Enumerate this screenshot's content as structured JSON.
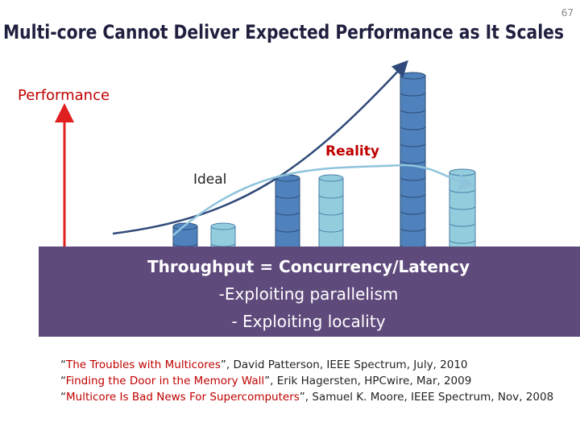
{
  "page_number": "67",
  "title": "Multi-core Cannot Deliver Expected Performance as It Scales",
  "diagram": {
    "axis_label": "Performance",
    "reality_label": "Reality",
    "ideal_label": "Ideal"
  },
  "box": {
    "lines": [
      "Throughput = Concurrency/Latency",
      "-Exploiting parallelism",
      "- Exploiting locality"
    ]
  },
  "references": [
    [
      "“",
      "The Troubles with Multicores",
      "”, David Patterson, IEEE Spectrum, July, 2010"
    ],
    [
      "“",
      "Finding the Door in the Memory Wall",
      "”, Erik Hagersten, HPCwire, Mar, 2009"
    ],
    [
      "“",
      "Multicore Is Bad News For Supercomputers",
      "”, Samuel K. Moore, IEEE Spectrum, Nov, 2008"
    ]
  ]
}
